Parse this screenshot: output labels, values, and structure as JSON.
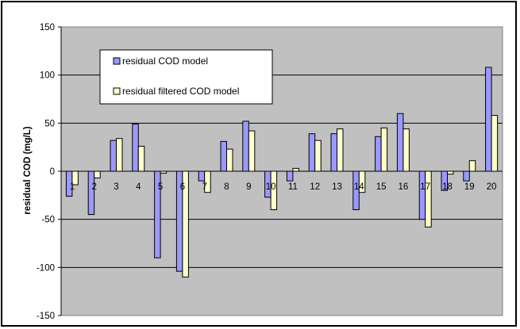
{
  "chart_data": {
    "type": "bar",
    "categories": [
      "1",
      "2",
      "3",
      "4",
      "5",
      "6",
      "7",
      "8",
      "9",
      "10",
      "11",
      "12",
      "13",
      "14",
      "15",
      "16",
      "17",
      "18",
      "19",
      "20"
    ],
    "series": [
      {
        "name": "residual COD model",
        "color": "#9999ff",
        "values": [
          -26,
          -45,
          32,
          49,
          -90,
          -104,
          -10,
          31,
          52,
          -27,
          -10,
          39,
          39,
          -40,
          36,
          60,
          -50,
          -20,
          -10,
          108
        ]
      },
      {
        "name": "residual filtered COD model",
        "color": "#ffffcc",
        "values": [
          -14,
          -7,
          34,
          26,
          -2,
          -110,
          -22,
          23,
          42,
          -40,
          3,
          32,
          44,
          -22,
          45,
          44,
          -58,
          -3,
          11,
          58
        ]
      }
    ],
    "ylabel": "residual COD (mg/L)",
    "xlabel": "",
    "title": "",
    "ylim": [
      -150,
      150
    ],
    "yticks": [
      -150,
      -100,
      -50,
      0,
      50,
      100,
      150
    ],
    "grid": true,
    "legend_position": "top-left",
    "plot_background": "#c0c0c0"
  }
}
